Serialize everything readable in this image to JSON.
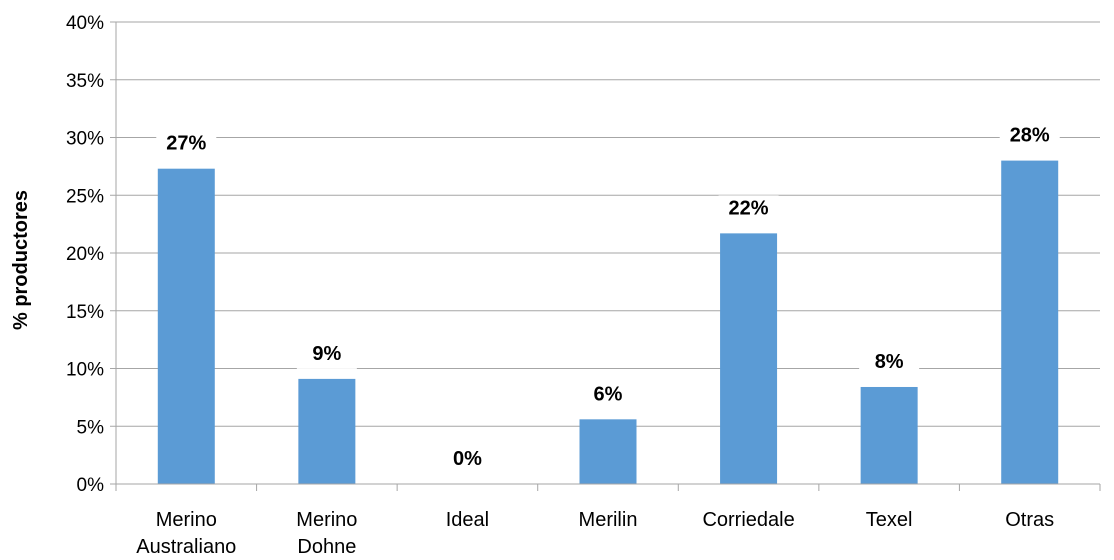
{
  "chart_data": {
    "type": "bar",
    "categories": [
      [
        "Merino",
        "Australiano"
      ],
      [
        "Merino",
        "Dohne"
      ],
      [
        "Ideal"
      ],
      [
        "Merilin"
      ],
      [
        "Corriedale"
      ],
      [
        "Texel"
      ],
      [
        "Otras"
      ]
    ],
    "values": [
      27.3,
      9.1,
      0,
      5.6,
      21.7,
      8.4,
      28.0
    ],
    "data_labels": [
      "27%",
      "9%",
      "0%",
      "6%",
      "22%",
      "8%",
      "28%"
    ],
    "ylabel": "% productores",
    "ylim": [
      0,
      40
    ],
    "yticks": [
      0,
      5,
      10,
      15,
      20,
      25,
      30,
      35,
      40
    ],
    "ytick_labels": [
      "0%",
      "5%",
      "10%",
      "15%",
      "20%",
      "25%",
      "30%",
      "35%",
      "40%"
    ],
    "grid": true,
    "legend": "none",
    "bar_color": "#5b9bd5",
    "grid_color": "#a6a6a6"
  }
}
